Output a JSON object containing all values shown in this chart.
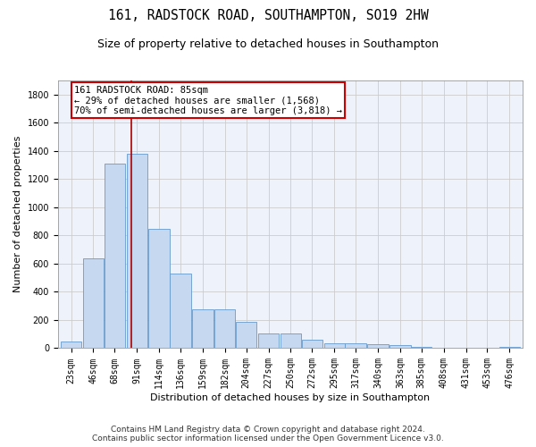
{
  "title_line1": "161, RADSTOCK ROAD, SOUTHAMPTON, SO19 2HW",
  "title_line2": "Size of property relative to detached houses in Southampton",
  "xlabel": "Distribution of detached houses by size in Southampton",
  "ylabel": "Number of detached properties",
  "bar_color": "#c5d8f0",
  "bar_edgecolor": "#6699cc",
  "grid_color": "#cccccc",
  "background_color": "#eef2fa",
  "annotation_text": "161 RADSTOCK ROAD: 85sqm\n← 29% of detached houses are smaller (1,568)\n70% of semi-detached houses are larger (3,818) →",
  "annotation_box_edgecolor": "#cc0000",
  "vline_x": 85,
  "vline_color": "#aa0000",
  "categories": [
    23,
    46,
    68,
    91,
    114,
    136,
    159,
    182,
    204,
    227,
    250,
    272,
    295,
    317,
    340,
    363,
    385,
    408,
    431,
    453,
    476
  ],
  "values": [
    50,
    640,
    1310,
    1380,
    848,
    530,
    275,
    275,
    185,
    105,
    105,
    60,
    37,
    37,
    30,
    22,
    12,
    0,
    0,
    0,
    12
  ],
  "ylim": [
    0,
    1900
  ],
  "yticks": [
    0,
    200,
    400,
    600,
    800,
    1000,
    1200,
    1400,
    1600,
    1800
  ],
  "footer_line1": "Contains HM Land Registry data © Crown copyright and database right 2024.",
  "footer_line2": "Contains public sector information licensed under the Open Government Licence v3.0.",
  "title_fontsize": 10.5,
  "subtitle_fontsize": 9,
  "axis_label_fontsize": 8,
  "tick_fontsize": 7,
  "footer_fontsize": 6.5,
  "annotation_fontsize": 7.5
}
